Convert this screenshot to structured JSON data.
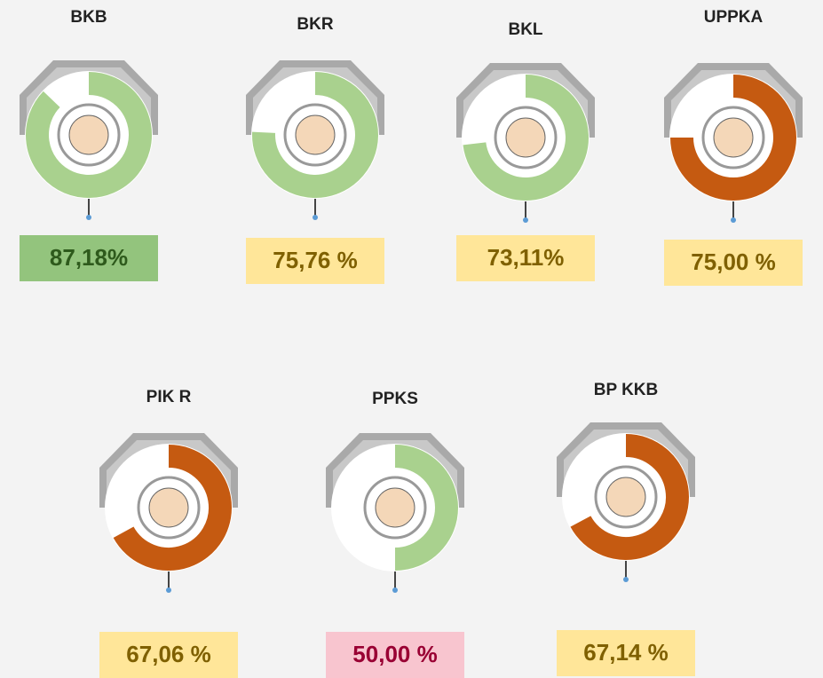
{
  "items": [
    {
      "title": "BKB",
      "value": 87.18,
      "value_label": "87,18%",
      "arc_color": "#a9d18e",
      "box_color": "#93c47d",
      "text_color": "#2e5a1c"
    },
    {
      "title": "BKR",
      "value": 75.76,
      "value_label": "75,76 %",
      "arc_color": "#a9d18e",
      "box_color": "#ffe699",
      "text_color": "#7f6000"
    },
    {
      "title": "BKL",
      "value": 73.11,
      "value_label": "73,11%",
      "arc_color": "#a9d18e",
      "box_color": "#ffe699",
      "text_color": "#7f6000"
    },
    {
      "title": "UPPKA",
      "value": 75.0,
      "value_label": "75,00 %",
      "arc_color": "#c55a11",
      "box_color": "#ffe699",
      "text_color": "#7f6000"
    },
    {
      "title": "PIK R",
      "value": 67.06,
      "value_label": "67,06 %",
      "arc_color": "#c55a11",
      "box_color": "#ffe699",
      "text_color": "#7f6000"
    },
    {
      "title": "PPKS",
      "value": 50.0,
      "value_label": "50,00 %",
      "arc_color": "#a9d18e",
      "box_color": "#f8c5cf",
      "text_color": "#990033"
    },
    {
      "title": "BP KKB",
      "value": 67.14,
      "value_label": "67,14 %",
      "arc_color": "#c55a11",
      "box_color": "#ffe699",
      "text_color": "#7f6000"
    }
  ]
}
